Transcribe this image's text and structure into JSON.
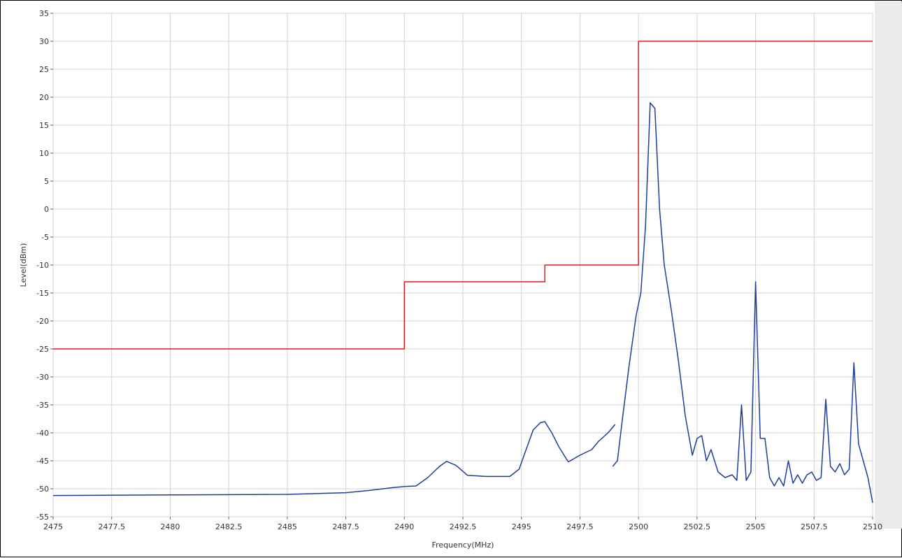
{
  "chart_data": {
    "type": "line",
    "title": "",
    "xlabel": "Frequency(MHz)",
    "ylabel": "Level(dBm)",
    "xlim": [
      2475,
      2510
    ],
    "ylim": [
      -55,
      35
    ],
    "grid": true,
    "x_ticks": [
      "2475",
      "2477.5",
      "2480",
      "2482.5",
      "2485",
      "2487.5",
      "2490",
      "2492.5",
      "2495",
      "2497.5",
      "2500",
      "2502.5",
      "2505",
      "2507.5",
      "2510"
    ],
    "y_ticks": [
      "35",
      "30",
      "25",
      "20",
      "15",
      "10",
      "5",
      "0",
      "-5",
      "-10",
      "-15",
      "-20",
      "-25",
      "-30",
      "-35",
      "-40",
      "-45",
      "-50",
      "-55"
    ],
    "series": [
      {
        "color": "#e01a1a",
        "x": [
          2475,
          2490,
          2490,
          2496,
          2496,
          2500,
          2500,
          2510
        ],
        "y": [
          -25,
          -25,
          -13,
          -13,
          -10,
          -10,
          30,
          30
        ]
      },
      {
        "color": "#1f3d99",
        "x": [
          2475,
          2480,
          2485,
          2487.5,
          2488.5,
          2489.5,
          2490,
          2490.5,
          2491,
          2491.5,
          2491.8,
          2492.2,
          2492.7,
          2493.5,
          2494.5,
          2494.9,
          2495.2,
          2495.5,
          2495.8,
          2496,
          2496.3,
          2496.6,
          2497
        ],
        "y": [
          -51.2,
          -51.1,
          -51,
          -50.7,
          -50.3,
          -49.8,
          -49.6,
          -49.5,
          -48,
          -46,
          -45.1,
          -45.8,
          -47.6,
          -47.8,
          -47.8,
          -46.5,
          -43,
          -39.5,
          -38.2,
          -38,
          -40,
          -42.5,
          -45.2
        ]
      },
      {
        "color": "#1f3d99",
        "x": [
          2497,
          2497.5,
          2498,
          2498.3,
          2498.7,
          2499
        ],
        "y": [
          -45.2,
          -44,
          -43,
          -41.5,
          -40,
          -38.5
        ]
      },
      {
        "color": "#1f3d99",
        "x": [
          2498.9,
          2499.1,
          2499.3,
          2499.6,
          2499.9,
          2500.1,
          2500.3,
          2500.5,
          2500.7,
          2500.9,
          2501.1,
          2501.4,
          2501.7,
          2502,
          2502.3,
          2502.5,
          2502.7,
          2502.9,
          2503.1,
          2503.4,
          2503.7,
          2504,
          2504.2,
          2504.4,
          2504.6,
          2504.8,
          2505,
          2505.2,
          2505.4,
          2505.6,
          2505.8,
          2506,
          2506.2,
          2506.4,
          2506.6,
          2506.8,
          2507,
          2507.2,
          2507.4,
          2507.6,
          2507.8,
          2508,
          2508.2,
          2508.4,
          2508.6,
          2508.8,
          2509,
          2509.2,
          2509.4,
          2509.6,
          2509.8,
          2510
        ],
        "y": [
          -46,
          -45,
          -38,
          -28,
          -19,
          -15,
          -3,
          19,
          18,
          0,
          -10,
          -18,
          -27,
          -37,
          -44,
          -41,
          -40.5,
          -45,
          -43,
          -47,
          -48,
          -47.5,
          -48.5,
          -35,
          -48.5,
          -47,
          -13,
          -41,
          -41,
          -48,
          -49.5,
          -48,
          -49.5,
          -45,
          -49,
          -47.5,
          -49,
          -47.5,
          -47,
          -48.5,
          -48,
          -34,
          -46,
          -47,
          -45.5,
          -47.5,
          -46.5,
          -27.5,
          -42,
          -45,
          -48,
          -52.5
        ]
      }
    ]
  }
}
